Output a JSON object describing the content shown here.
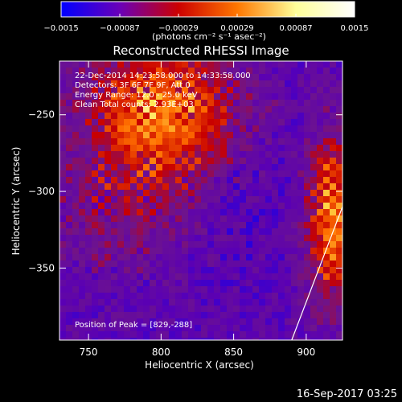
{
  "chart_data": [
    {
      "type": "colorbar",
      "unit_label": "(photons cm⁻² s⁻¹ asec⁻²)",
      "range": [
        -0.0015,
        0.0015
      ],
      "tick_labels": [
        "−0.0015",
        "−0.00087",
        "−0.00029",
        "0.00029",
        "0.00087",
        "0.0015"
      ],
      "colors": [
        "#0000ff",
        "#6a00b8",
        "#cc0000",
        "#ff7700",
        "#ffff99",
        "#ffffff"
      ]
    },
    {
      "type": "heatmap",
      "title": "Reconstructed RHESSI Image",
      "xlabel": "Heliocentric X (arcsec)",
      "ylabel": "Heliocentric Y (arcsec)",
      "xlim": [
        730,
        925
      ],
      "ylim": [
        -397,
        -215
      ],
      "x_ticks": [
        750,
        800,
        850,
        900
      ],
      "y_ticks": [
        -250,
        -300,
        -350
      ],
      "x_tick_labels": [
        "750",
        "800",
        "850",
        "900"
      ],
      "y_tick_labels": [
        "−250",
        "−300",
        "−350"
      ],
      "annotations": [
        "22-Dec-2014 14:23:58.000 to 14:33:58.000",
        "Detectors: 3F 6F 7F 9F, Att 0",
        "Energy Range: 12.0 - 25.0 keV",
        "Clean     Total counts: 2.93E+03"
      ],
      "peak_label": "Position of Peak = [829,-288]",
      "peak": [
        829,
        -288
      ],
      "limb_line": [
        [
          890,
          -397
        ],
        [
          925,
          -310
        ]
      ]
    }
  ],
  "footer": {
    "timestamp": "16-Sep-2017 03:25"
  }
}
